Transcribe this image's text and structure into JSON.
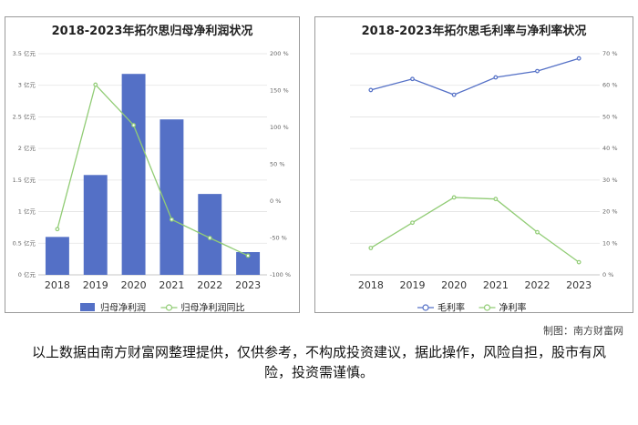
{
  "credit": "制图：南方财富网",
  "disclaimer": "以上数据由南方财富网整理提供，仅供参考，不构成投资建议，据此操作，风险自担，股市有风险，投资需谨慎。",
  "chart_data": [
    {
      "type": "bar",
      "title": "2018-2023年拓尔思归母净利润状况",
      "categories": [
        "2018",
        "2019",
        "2020",
        "2021",
        "2022",
        "2023"
      ],
      "ylim": [
        0,
        3.5
      ],
      "yticks": [
        "0 亿元",
        "0.5 亿元",
        "1 亿元",
        "1.5 亿元",
        "2 亿元",
        "2.5 亿元",
        "3 亿元",
        "3.5 亿元"
      ],
      "y2lim": [
        -100,
        200
      ],
      "y2ticks": [
        "-100 %",
        "-50 %",
        "0 %",
        "50 %",
        "100 %",
        "150 %",
        "200 %"
      ],
      "legend_position": "bottom",
      "series": [
        {
          "name": "归母净利润",
          "kind": "bar",
          "axis": "left",
          "color": "#5470c6",
          "values": [
            0.6,
            1.58,
            3.18,
            2.46,
            1.28,
            0.36
          ]
        },
        {
          "name": "归母净利润同比",
          "kind": "line",
          "axis": "right",
          "color": "#91cc75",
          "values": [
            -38,
            158,
            103,
            -25,
            -50,
            -74
          ]
        }
      ],
      "grid": true
    },
    {
      "type": "line",
      "title": "2018-2023年拓尔思毛利率与净利率状况",
      "categories": [
        "2018",
        "2019",
        "2020",
        "2021",
        "2022",
        "2023"
      ],
      "y2lim": [
        0,
        70
      ],
      "y2ticks": [
        "0 %",
        "10 %",
        "20 %",
        "30 %",
        "40 %",
        "50 %",
        "60 %",
        "70 %"
      ],
      "legend_position": "bottom",
      "series": [
        {
          "name": "毛利率",
          "kind": "line",
          "axis": "right",
          "color": "#5470c6",
          "values": [
            58.5,
            62,
            57,
            62.5,
            64.5,
            68.5
          ]
        },
        {
          "name": "净利率",
          "kind": "line",
          "axis": "right",
          "color": "#91cc75",
          "values": [
            8.5,
            16.5,
            24.5,
            24,
            13.5,
            4
          ]
        }
      ],
      "grid": true
    }
  ]
}
